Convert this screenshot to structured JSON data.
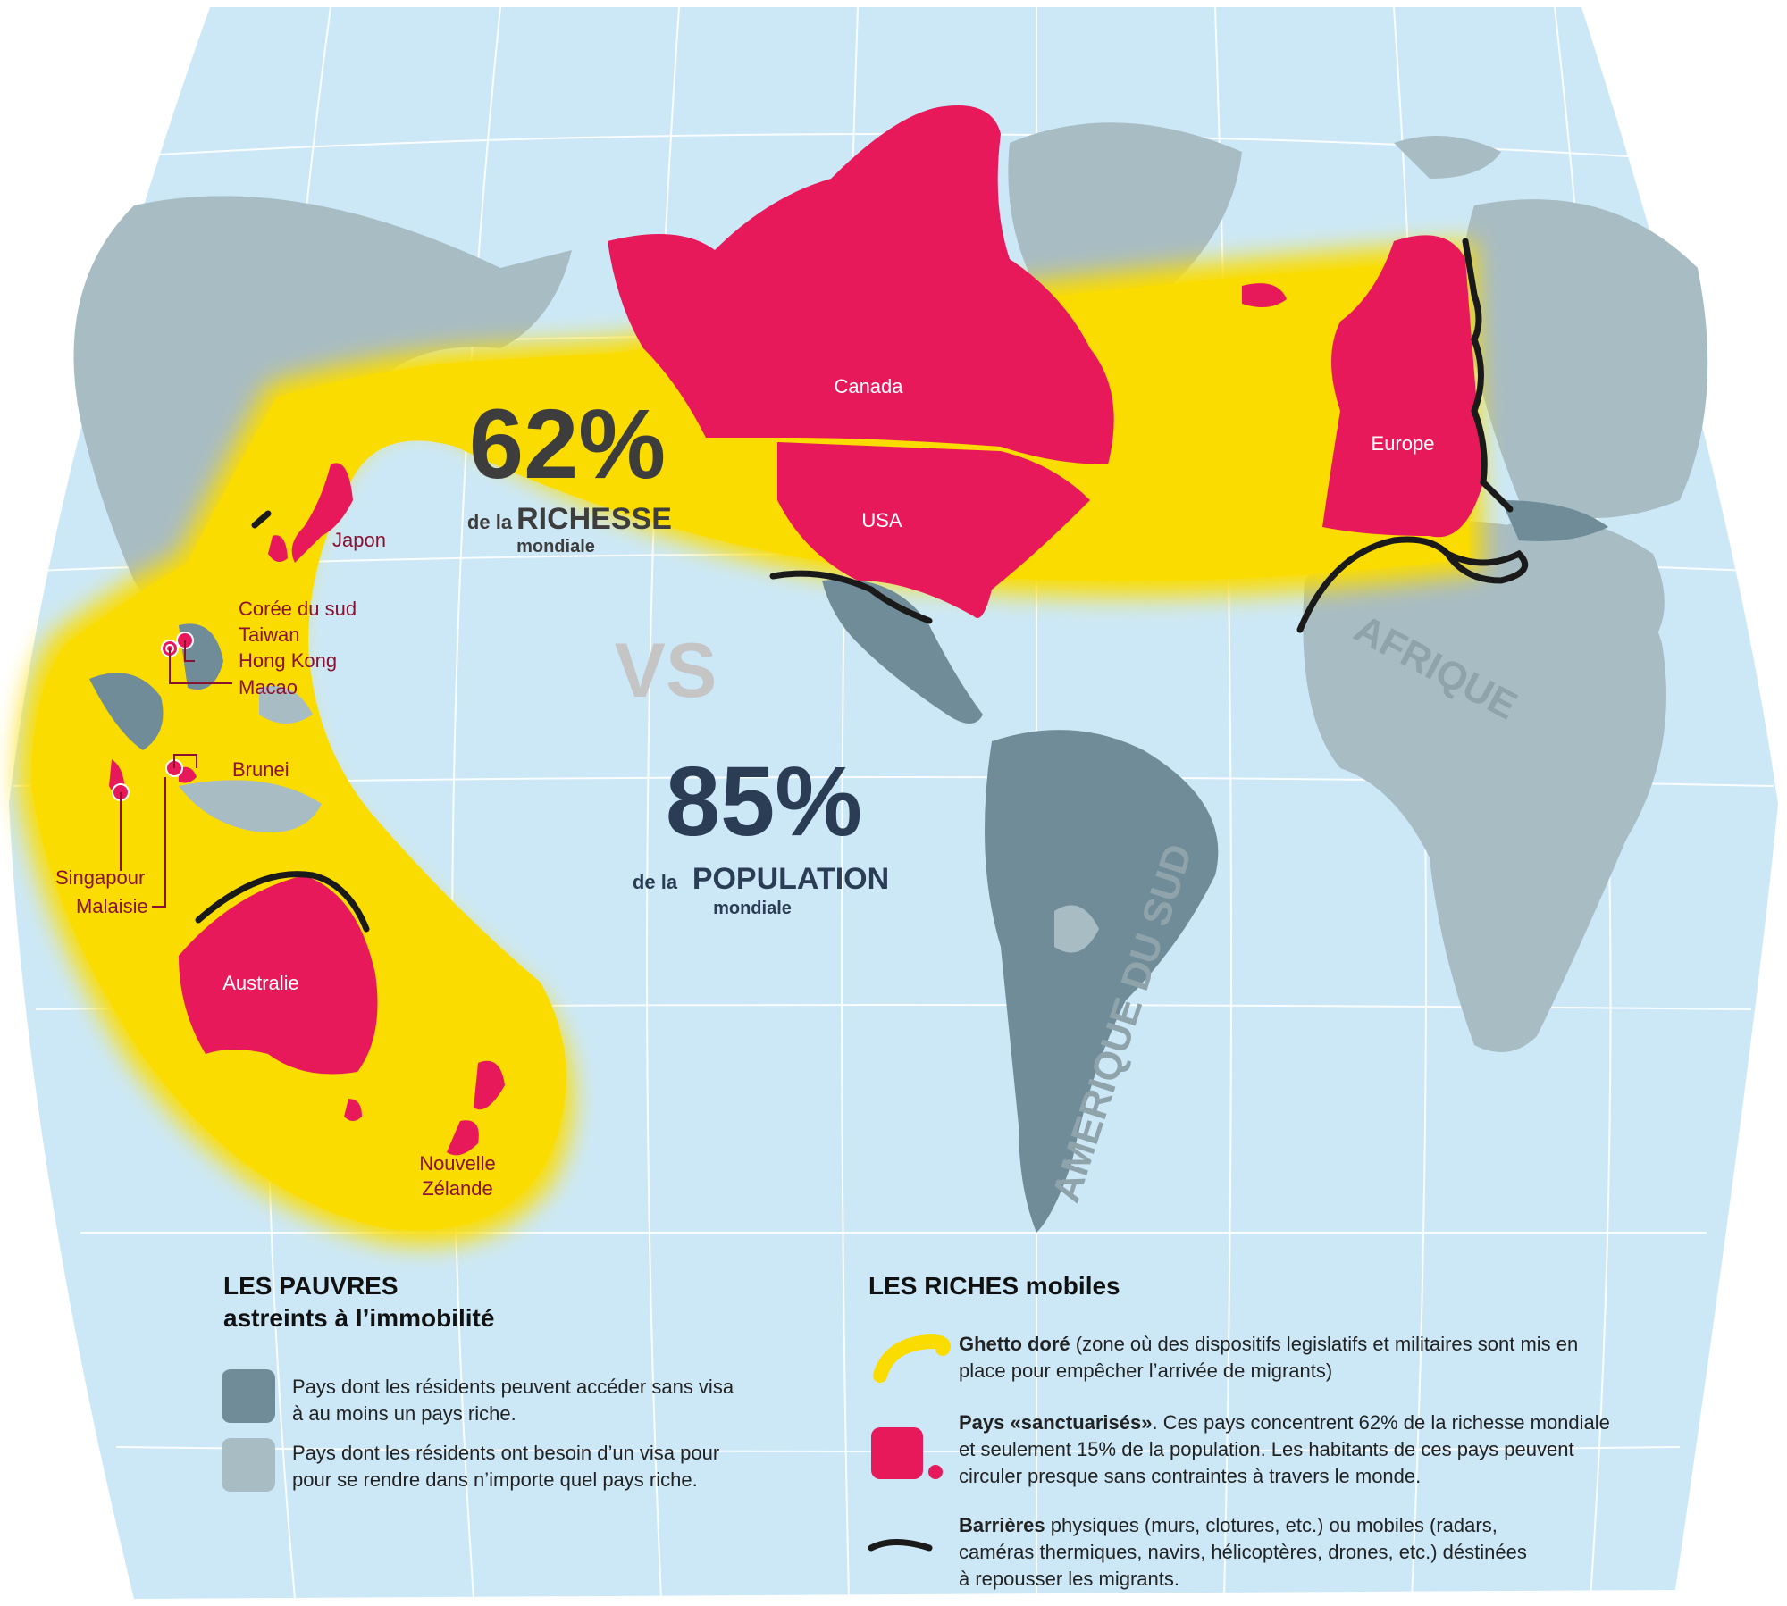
{
  "colors": {
    "ocean": "#cce8f7",
    "graticule": "#ffffff",
    "rich_country": "#e8195a",
    "ghetto_zone": "#fbdc00",
    "no_visa_country": "#6f8c98",
    "visa_country": "#a8bcc4",
    "barrier": "#1a1a1a",
    "label_rich": "#8a1230",
    "stat_dark": "#3d3d3d",
    "stat_navy": "#2b3d55",
    "vs_gray": "#c5c5c5"
  },
  "map": {
    "country_labels": {
      "canada": "Canada",
      "usa": "USA",
      "europe": "Europe",
      "australia": "Australie",
      "japon": "Japon",
      "coree": "Corée du sud",
      "taiwan": "Taiwan",
      "hongkong": "Hong Kong",
      "macao": "Macao",
      "brunei": "Brunei",
      "singapour": "Singapour",
      "malaisie": "Malaisie",
      "nz_line1": "Nouvelle",
      "nz_line2": "Zélande"
    },
    "region_labels": {
      "afrique": "AFRIQUE",
      "amerique_sud": "AMERIQUE DU SUD"
    }
  },
  "stats": {
    "wealth_pct": "62%",
    "wealth_prefix": "de la",
    "wealth_word": "RICHESSE",
    "wealth_suffix": "mondiale",
    "vs": "VS",
    "pop_pct": "85%",
    "pop_prefix": "de la",
    "pop_word": "POPULATION",
    "pop_suffix": "mondiale"
  },
  "legend": {
    "poor": {
      "title_line1": "LES PAUVRES",
      "title_line2": "astreints à l’immobilité",
      "item1_line1": "Pays dont les résidents peuvent accéder sans visa",
      "item1_line2": "à au moins un pays riche.",
      "item2_line1": "Pays dont les résidents ont besoin d’un visa pour",
      "item2_line2": "pour se rendre dans n’importe quel pays riche."
    },
    "rich": {
      "title": "LES RICHES mobiles",
      "ghetto_bold": "Ghetto doré",
      "ghetto_line1": " (zone où des dispositifs legislatifs et militaires sont mis en",
      "ghetto_line2": "place pour empêcher l’arrivée de migrants)",
      "sanct_bold": "Pays «sanctuarisés»",
      "sanct_line1": ". Ces pays concentrent 62% de la richesse mondiale",
      "sanct_line2": "et seulement 15% de la population. Les habitants de ces pays peuvent",
      "sanct_line3": "circuler presque sans contraintes à travers le monde.",
      "barrier_bold": "Barrières",
      "barrier_line1": " physiques (murs, clotures, etc.) ou  mobiles (radars,",
      "barrier_line2": "caméras thermiques, navirs, hélicoptères, drones, etc.) déstinées",
      "barrier_line3": "à repousser les migrants."
    }
  }
}
